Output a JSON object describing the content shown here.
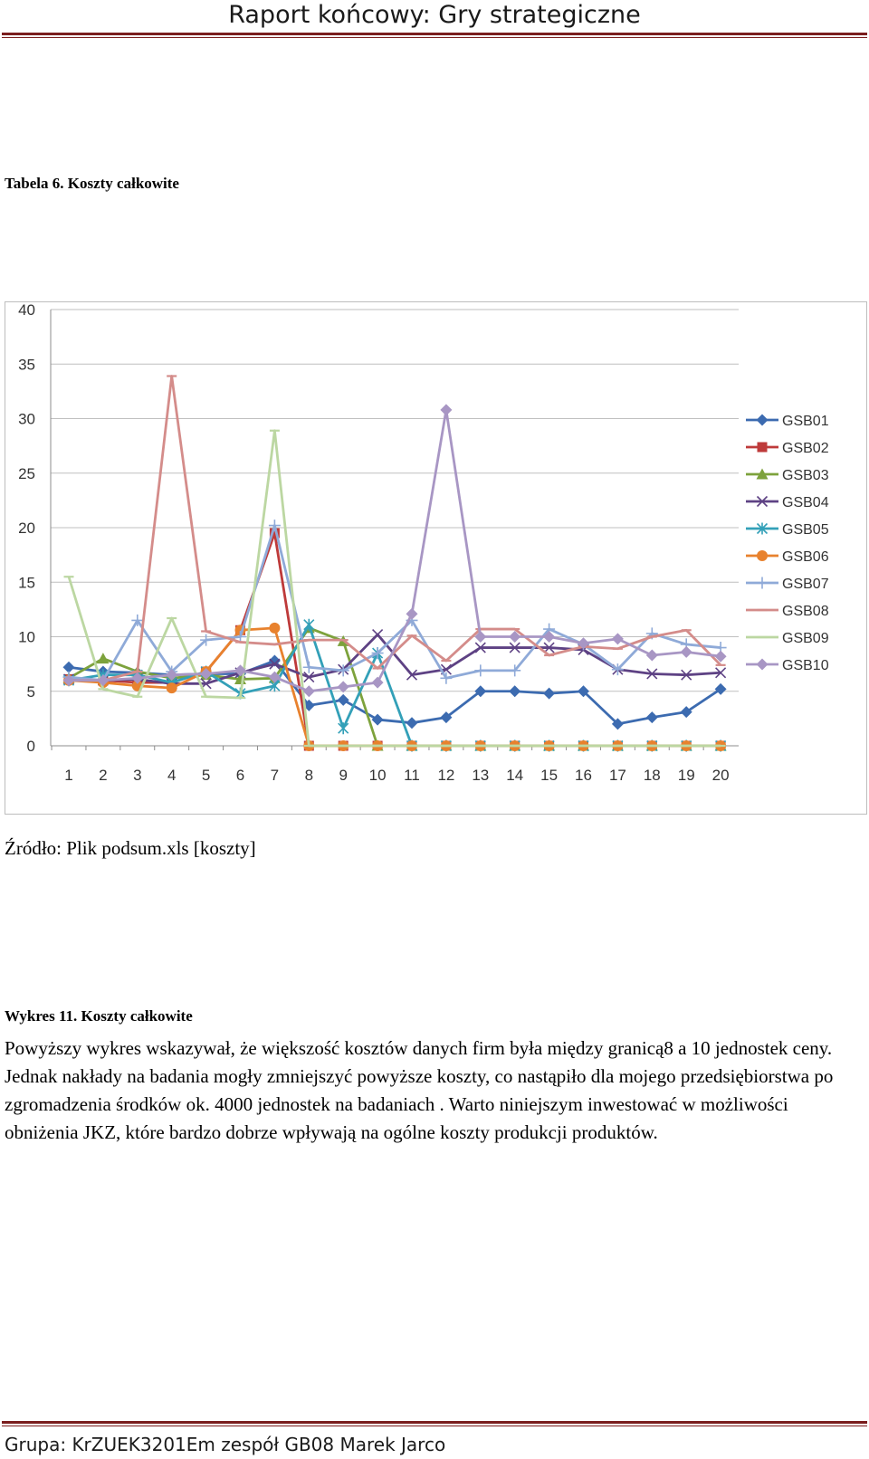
{
  "header": {
    "title": "Raport końcowy: Gry strategiczne"
  },
  "table_caption": "Tabela 6. Koszty całkowite",
  "source": "Źródło: Plik podsum.xls [koszty]",
  "figure_caption": "Wykres 11. Koszty całkowite",
  "body_text": "Powyższy wykres wskazywał, że większość kosztów danych firm była między granicą8 a 10 jednostek ceny. Jednak nakłady na badania mogły zmniejszyć powyższe koszty, co nastąpiło dla mojego przedsiębiorstwa po zgromadzenia środków ok. 4000 jednostek na badaniach . Warto niniejszym inwestować w możliwości obniżenia JKZ, które bardzo dobrze wpływają na ogólne koszty produkcji produktów.",
  "footer": "Grupa: KrZUEK3201Em zespół GB08 Marek Jarco",
  "chart_data": {
    "type": "line",
    "x": [
      1,
      2,
      3,
      4,
      5,
      6,
      7,
      8,
      9,
      10,
      11,
      12,
      13,
      14,
      15,
      16,
      17,
      18,
      19,
      20
    ],
    "ylim": [
      0,
      40
    ],
    "yticks": [
      0,
      5,
      10,
      15,
      20,
      25,
      30,
      35,
      40
    ],
    "grid": true,
    "legend_position": "right",
    "series": [
      {
        "name": "GSB01",
        "color": "#3c6bb0",
        "marker": "diamond",
        "values": [
          7.2,
          6.8,
          6.7,
          6.5,
          6.6,
          6.6,
          7.8,
          3.7,
          4.2,
          2.4,
          2.1,
          2.6,
          5.0,
          5.0,
          4.8,
          5.0,
          2.0,
          2.6,
          3.1,
          5.2
        ]
      },
      {
        "name": "GSB02",
        "color": "#be3a3a",
        "marker": "square",
        "values": [
          6.1,
          6.0,
          5.8,
          5.8,
          6.8,
          10.6,
          19.5,
          0,
          0,
          0,
          0,
          0,
          0,
          0,
          0,
          0,
          0,
          0,
          0,
          0
        ]
      },
      {
        "name": "GSB03",
        "color": "#7da23c",
        "marker": "triangle",
        "values": [
          6.2,
          8.0,
          6.8,
          6.2,
          6.5,
          6.1,
          6.2,
          10.8,
          9.6,
          0,
          0,
          0,
          0,
          0,
          0,
          0,
          0,
          0,
          0,
          0
        ]
      },
      {
        "name": "GSB04",
        "color": "#5e4284",
        "marker": "x",
        "values": [
          6.1,
          6.0,
          6.1,
          5.7,
          5.7,
          6.7,
          7.5,
          6.3,
          7.0,
          10.2,
          6.5,
          7.0,
          9.0,
          9.0,
          9.0,
          8.8,
          7.0,
          6.6,
          6.5,
          6.7
        ]
      },
      {
        "name": "GSB05",
        "color": "#33a0b8",
        "marker": "asterisk",
        "values": [
          6.0,
          6.5,
          6.5,
          5.8,
          6.8,
          4.8,
          5.5,
          11.1,
          1.6,
          8.5,
          0,
          0,
          0,
          0,
          0,
          0,
          0,
          0,
          0,
          0
        ]
      },
      {
        "name": "GSB06",
        "color": "#e8822e",
        "marker": "circle",
        "values": [
          6.0,
          5.8,
          5.5,
          5.3,
          6.8,
          10.6,
          10.8,
          0,
          0,
          0,
          0,
          0,
          0,
          0,
          0,
          0,
          0,
          0,
          0,
          0
        ]
      },
      {
        "name": "GSB07",
        "color": "#8faad8",
        "marker": "plus",
        "values": [
          6.3,
          6.0,
          11.5,
          6.8,
          9.7,
          10.0,
          20.2,
          7.2,
          6.9,
          8.5,
          11.5,
          6.2,
          6.9,
          6.9,
          10.7,
          9.3,
          7.0,
          10.3,
          9.3,
          9.0
        ]
      },
      {
        "name": "GSB08",
        "color": "#d48c8a",
        "marker": "dash",
        "values": [
          6.0,
          6.0,
          6.8,
          33.9,
          10.5,
          9.5,
          9.3,
          9.7,
          9.7,
          7.1,
          10.1,
          7.8,
          10.7,
          10.7,
          8.3,
          9.1,
          8.9,
          10.0,
          10.6,
          7.4
        ]
      },
      {
        "name": "GSB09",
        "color": "#bcd7a2",
        "marker": "dash",
        "values": [
          15.5,
          5.2,
          4.5,
          11.7,
          4.5,
          4.4,
          28.9,
          0,
          0,
          0,
          0,
          0,
          0,
          0,
          0,
          0,
          0,
          0,
          0,
          0
        ]
      },
      {
        "name": "GSB10",
        "color": "#a896c4",
        "marker": "diamond",
        "values": [
          6.0,
          6.0,
          6.2,
          6.5,
          6.6,
          6.9,
          6.3,
          5.0,
          5.4,
          5.8,
          12.1,
          30.8,
          10.0,
          10.0,
          10.0,
          9.4,
          9.8,
          8.3,
          8.6,
          8.2
        ]
      }
    ]
  }
}
